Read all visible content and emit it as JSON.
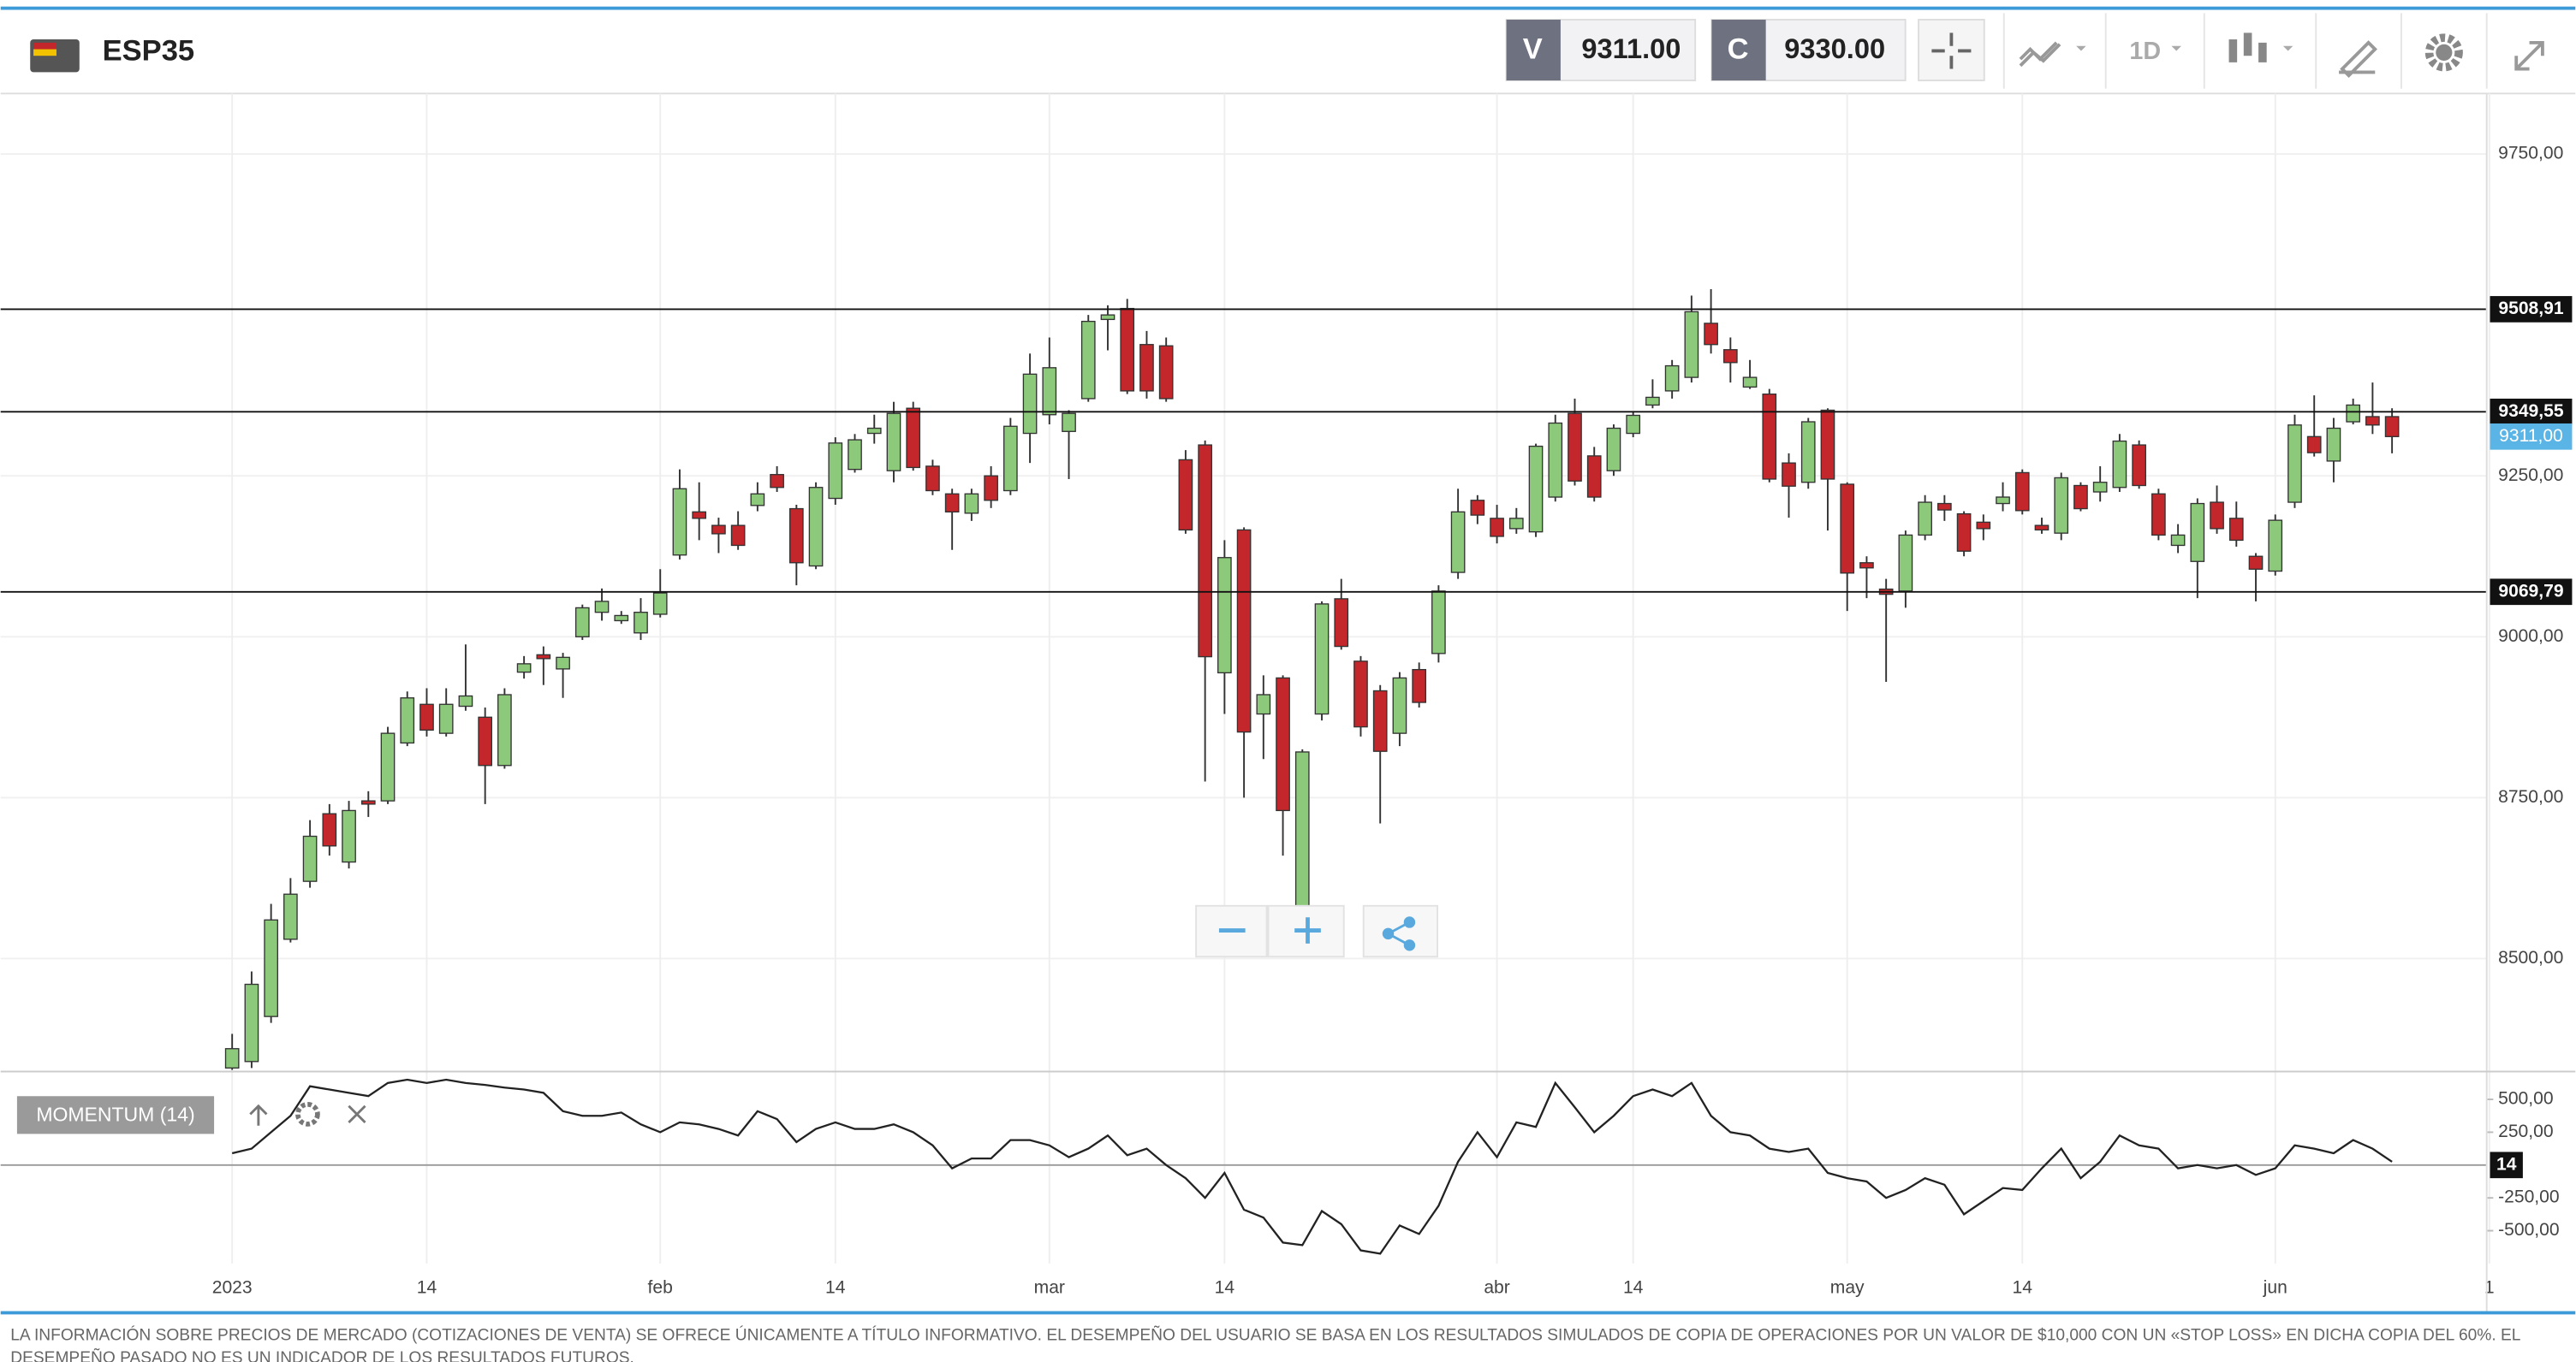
{
  "header": {
    "symbol": "ESP35",
    "sell": {
      "label": "V",
      "price": "9311.00"
    },
    "buy": {
      "label": "C",
      "price": "9330.00"
    },
    "timeframe": "1D"
  },
  "chart_data": [
    {
      "type": "candlestick",
      "categories": [
        "2023",
        null,
        null,
        null,
        null,
        null,
        null,
        null,
        null,
        null,
        "14",
        null,
        null,
        null,
        null,
        null,
        null,
        null,
        null,
        null,
        null,
        null,
        "feb",
        null,
        null,
        null,
        null,
        null,
        null,
        null,
        null,
        "14",
        null,
        null,
        null,
        null,
        null,
        null,
        null,
        null,
        null,
        null,
        "mar",
        null,
        null,
        null,
        null,
        null,
        null,
        null,
        null,
        "14",
        null,
        null,
        null,
        null,
        null,
        null,
        null,
        null,
        null,
        null,
        null,
        null,
        null,
        "abr",
        null,
        null,
        null,
        null,
        null,
        null,
        "14",
        null,
        null,
        null,
        null,
        null,
        null,
        null,
        null,
        null,
        null,
        "may",
        null,
        null,
        null,
        null,
        null,
        null,
        null,
        null,
        "14",
        null,
        null,
        null,
        null,
        null,
        null,
        null,
        null,
        null,
        null,
        null,
        null,
        "jun",
        null,
        null,
        null,
        null,
        null,
        null,
        null,
        null,
        null,
        null,
        "1"
      ],
      "open": [
        8330,
        8340,
        8410,
        8530,
        8620,
        8725,
        8650,
        8745,
        8745,
        8835,
        8895,
        8850,
        8892,
        8875,
        8800,
        8945,
        8972,
        8950,
        9000,
        9038,
        9025,
        9006,
        9035,
        9127,
        9194,
        9173,
        9173,
        9204,
        9252,
        9199,
        9110,
        9215,
        9260,
        9316,
        9258,
        9355,
        9265,
        9222,
        9192,
        9250,
        9227,
        9316,
        9345,
        9319,
        9370,
        9493,
        9510,
        9454,
        9452,
        9275,
        9298,
        8944,
        9166,
        8880,
        8936,
        8571,
        8880,
        9059,
        8962,
        8916,
        8850,
        8949,
        8974,
        9100,
        9212,
        9184,
        9168,
        9163,
        9217,
        9347,
        9281,
        9258,
        9316,
        9360,
        9382,
        9403,
        9487,
        9446,
        9388,
        9377,
        9270,
        9240,
        9352,
        9237,
        9115,
        9074,
        9071,
        9158,
        9207,
        9191,
        9178,
        9207,
        9255,
        9173,
        9161,
        9235,
        9225,
        9232,
        9298,
        9222,
        9142,
        9117,
        9209,
        9184,
        9125,
        9102,
        9209,
        9311,
        9273,
        9334,
        9342,
        9342,
        null,
        null,
        null,
        null,
        null
      ],
      "high": [
        8383,
        8480,
        8585,
        8625,
        8715,
        8740,
        8745,
        8760,
        8860,
        8915,
        8920,
        8920,
        8988,
        8890,
        8920,
        8970,
        8985,
        8975,
        9050,
        9075,
        9040,
        9060,
        9105,
        9260,
        9240,
        9185,
        9195,
        9240,
        9265,
        9205,
        9240,
        9310,
        9315,
        9345,
        9365,
        9365,
        9275,
        9230,
        9230,
        9265,
        9340,
        9440,
        9465,
        9352,
        9500,
        9515,
        9525,
        9475,
        9465,
        9290,
        9305,
        9150,
        9170,
        8940,
        8940,
        8825,
        9055,
        9090,
        8970,
        8925,
        8945,
        8960,
        9080,
        9230,
        9220,
        9205,
        9200,
        9300,
        9345,
        9370,
        9295,
        9330,
        9350,
        9400,
        9430,
        9530,
        9540,
        9465,
        9430,
        9385,
        9285,
        9340,
        9355,
        9240,
        9125,
        9090,
        9165,
        9220,
        9220,
        9195,
        9190,
        9240,
        9260,
        9185,
        9255,
        9240,
        9265,
        9315,
        9305,
        9230,
        9175,
        9215,
        9235,
        9210,
        9130,
        9190,
        9345,
        9375,
        9340,
        9370,
        9395,
        9355,
        null,
        null,
        null,
        null,
        null
      ],
      "low": [
        8327,
        8330,
        8400,
        8525,
        8610,
        8660,
        8640,
        8720,
        8740,
        8830,
        8845,
        8845,
        8885,
        8740,
        8795,
        8935,
        8925,
        8905,
        8995,
        9025,
        9020,
        8995,
        9030,
        9120,
        9150,
        9130,
        9135,
        9195,
        9225,
        9080,
        9105,
        9205,
        9255,
        9300,
        9240,
        9258,
        9220,
        9135,
        9180,
        9200,
        9220,
        9270,
        9330,
        9245,
        9365,
        9445,
        9377,
        9370,
        9365,
        9160,
        8775,
        8880,
        8750,
        8810,
        8660,
        8515,
        8870,
        8980,
        8845,
        8710,
        8830,
        8890,
        8960,
        9090,
        9175,
        9145,
        9160,
        9155,
        9210,
        9235,
        9210,
        9250,
        9310,
        9355,
        9370,
        9395,
        9440,
        9395,
        9385,
        9240,
        9185,
        9230,
        9165,
        9040,
        9060,
        8930,
        9045,
        9150,
        9180,
        9125,
        9150,
        9195,
        9190,
        9160,
        9150,
        9195,
        9210,
        9225,
        9230,
        9150,
        9130,
        9060,
        9160,
        9140,
        9055,
        9095,
        9200,
        9280,
        9240,
        9330,
        9315,
        9285,
        null,
        null,
        null,
        null,
        null
      ],
      "close": [
        8360,
        8460,
        8560,
        8600,
        8690,
        8675,
        8730,
        8740,
        8850,
        8905,
        8855,
        8895,
        8908,
        8800,
        8910,
        8958,
        8966,
        8968,
        9045,
        9055,
        9033,
        9038,
        9068,
        9230,
        9184,
        9160,
        9142,
        9222,
        9232,
        9115,
        9232,
        9301,
        9306,
        9324,
        9347,
        9263,
        9227,
        9194,
        9222,
        9212,
        9327,
        9408,
        9418,
        9347,
        9490,
        9500,
        9382,
        9382,
        9370,
        9166,
        8969,
        9123,
        8852,
        8910,
        8730,
        8821,
        9051,
        8985,
        8860,
        8822,
        8936,
        8898,
        9071,
        9194,
        9189,
        9156,
        9184,
        9296,
        9332,
        9242,
        9217,
        9324,
        9344,
        9372,
        9421,
        9505,
        9454,
        9426,
        9403,
        9245,
        9234,
        9334,
        9245,
        9099,
        9107,
        9066,
        9158,
        9209,
        9197,
        9133,
        9168,
        9217,
        9196,
        9166,
        9247,
        9199,
        9240,
        9304,
        9235,
        9158,
        9158,
        9207,
        9168,
        9150,
        9105,
        9181,
        9329,
        9286,
        9324,
        9360,
        9329,
        9311,
        null,
        null,
        null,
        null,
        null
      ],
      "up_color": "#8dc97b",
      "down_color": "#c3272b",
      "ylim": [
        8327,
        9844
      ],
      "yticks": [
        {
          "value": 8500,
          "label": "8500,00"
        },
        {
          "value": 8750,
          "label": "8750,00"
        },
        {
          "value": 9000,
          "label": "9000,00"
        },
        {
          "value": 9250,
          "label": "9250,00"
        },
        {
          "value": 9750,
          "label": "9750,00"
        }
      ],
      "levels": [
        {
          "value": 9508.91,
          "label": "9508,91"
        },
        {
          "value": 9349.55,
          "label": "9349,55"
        },
        {
          "value": 9069.79,
          "label": "9069,79"
        }
      ],
      "last_price": {
        "value": 9311,
        "label": "9311,00"
      },
      "grid": true
    },
    {
      "type": "line",
      "title": "MOMENTUM (14)",
      "color": "#222222",
      "values": [
        90,
        125,
        250,
        375,
        600,
        575,
        550,
        525,
        625,
        650,
        625,
        650,
        625,
        610,
        590,
        575,
        550,
        410,
        375,
        375,
        400,
        310,
        250,
        325,
        310,
        275,
        225,
        410,
        350,
        175,
        275,
        325,
        275,
        275,
        310,
        250,
        150,
        -25,
        50,
        50,
        190,
        190,
        150,
        60,
        125,
        225,
        75,
        125,
        0,
        -100,
        -250,
        -60,
        -340,
        -400,
        -590,
        -610,
        -350,
        -450,
        -650,
        -675,
        -460,
        -525,
        -310,
        25,
        250,
        60,
        325,
        290,
        625,
        440,
        250,
        375,
        525,
        575,
        525,
        625,
        375,
        250,
        225,
        125,
        100,
        125,
        -60,
        -100,
        -125,
        -250,
        -190,
        -100,
        -150,
        -375,
        -275,
        -175,
        -190,
        -25,
        125,
        -100,
        25,
        225,
        150,
        125,
        -25,
        0,
        -25,
        0,
        -75,
        -25,
        150,
        125,
        90,
        190,
        125,
        25,
        null,
        null,
        null,
        null,
        null
      ],
      "ylim": [
        -750,
        662
      ],
      "yticks": [
        {
          "value": 500,
          "label": "500,00"
        },
        {
          "value": 250,
          "label": "250,00"
        },
        {
          "value": -250,
          "label": "-250,00"
        },
        {
          "value": -500,
          "label": "-500,00"
        }
      ],
      "marker_label": "14"
    }
  ],
  "disclaimer": [
    "LA INFORMACIÓN SOBRE PRECIOS DE MERCADO (COTIZACIONES DE VENTA) SE OFRECE ÚNICAMENTE A TÍTULO INFORMATIVO. EL DESEMPEÑO DEL USUARIO SE BASA EN LOS RESULTADOS SIMULADOS DE COPIA DE OPERACIONES POR UN VALOR DE $10,000 CON UN «STOP LOSS» EN DICHA COPIA DEL 60%. EL",
    "DESEMPEÑO PASADO NO ES UN INDICADOR DE LOS RESULTADOS FUTUROS."
  ]
}
